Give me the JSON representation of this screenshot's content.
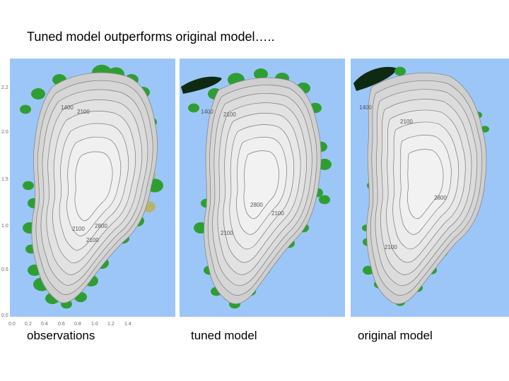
{
  "slide": {
    "title": "Tuned model outperforms original model…..",
    "panels": [
      {
        "caption": "observations",
        "style": "observations"
      },
      {
        "caption": "tuned model",
        "style": "tuned"
      },
      {
        "caption": "original model",
        "style": "original"
      }
    ]
  },
  "axes": {
    "x_ticks": [
      "0.0",
      "0.2",
      "0.4",
      "0.6",
      "0.8",
      "1.0",
      "1.2",
      "1.4"
    ],
    "y_ticks": [
      "2.2",
      "2.0",
      "1.5",
      "1.0",
      "0.5",
      "0.0"
    ]
  },
  "contour_labels": {
    "observations": [
      "1400",
      "2100",
      "2800",
      "2100",
      "2100"
    ],
    "tuned": [
      "1400",
      "2100",
      "2800",
      "2100",
      "2100"
    ],
    "original": [
      "1400",
      "2100",
      "2800",
      "2100"
    ]
  },
  "colors": {
    "ocean": "#9dc6f8",
    "ice_interior": "#f2f2f2",
    "ice_edge": "#b8b8b8",
    "vegetation": "#2f9e32",
    "vegetation_light": "#8fd27a",
    "dark_island": "#0e2a12"
  }
}
